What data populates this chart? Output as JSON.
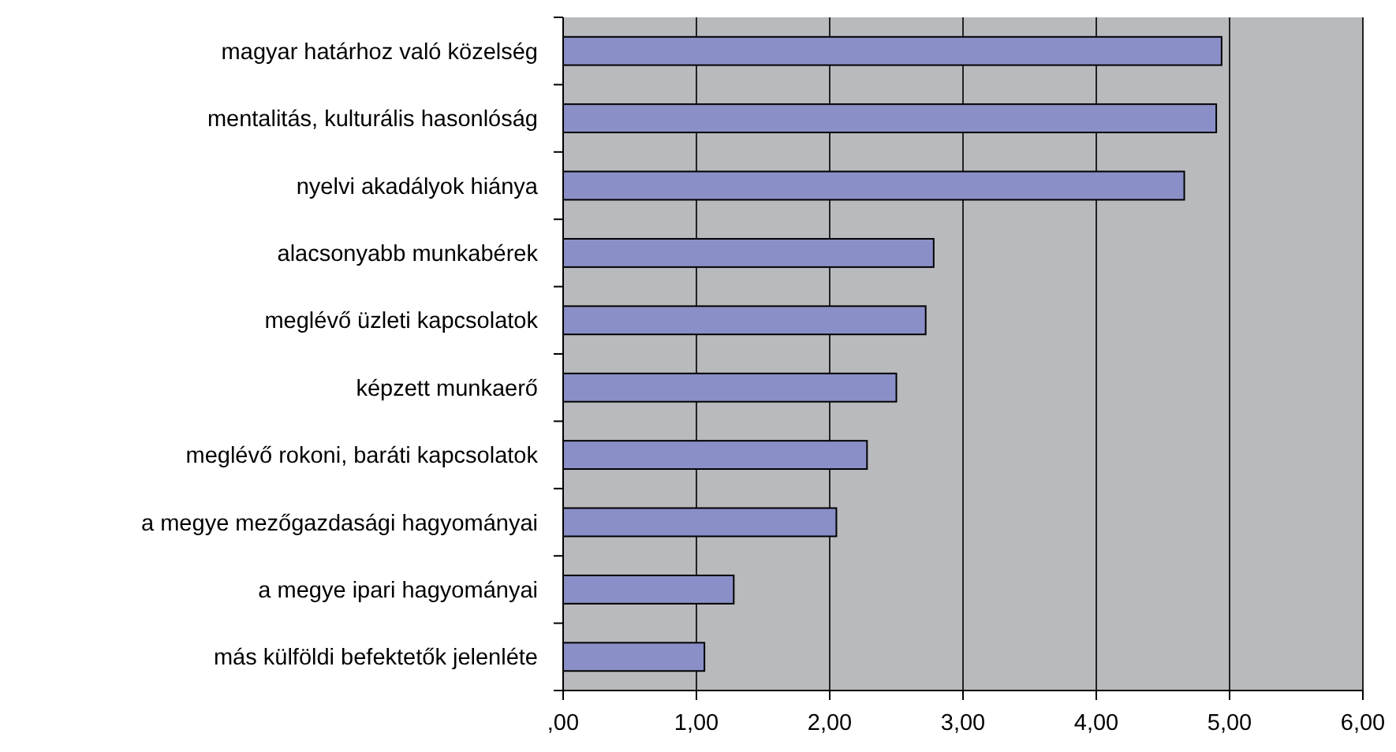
{
  "chart_data": {
    "type": "bar",
    "orientation": "horizontal",
    "categories": [
      "magyar határhoz való közelség",
      "mentalitás, kulturális hasonlóság",
      "nyelvi akadályok hiánya",
      "alacsonyabb munkabérek",
      "meglévő üzleti kapcsolatok",
      "képzett munkaerő",
      "meglévő rokoni, baráti kapcsolatok",
      "a megye mezőgazdasági hagyományai",
      "a megye ipari hagyományai",
      "más külföldi befektetők jelenléte"
    ],
    "values": [
      4.94,
      4.9,
      4.66,
      2.78,
      2.72,
      2.5,
      2.28,
      2.05,
      1.28,
      1.06
    ],
    "color": "#8b8fc7",
    "xlim": [
      0,
      6
    ],
    "xticks": [
      {
        "value": 0,
        "label": ",00"
      },
      {
        "value": 1,
        "label": "1,00"
      },
      {
        "value": 2,
        "label": "2,00"
      },
      {
        "value": 3,
        "label": "3,00"
      },
      {
        "value": 4,
        "label": "4,00"
      },
      {
        "value": 5,
        "label": "5,00"
      },
      {
        "value": 6,
        "label": "6,00"
      }
    ],
    "grid": "x"
  }
}
